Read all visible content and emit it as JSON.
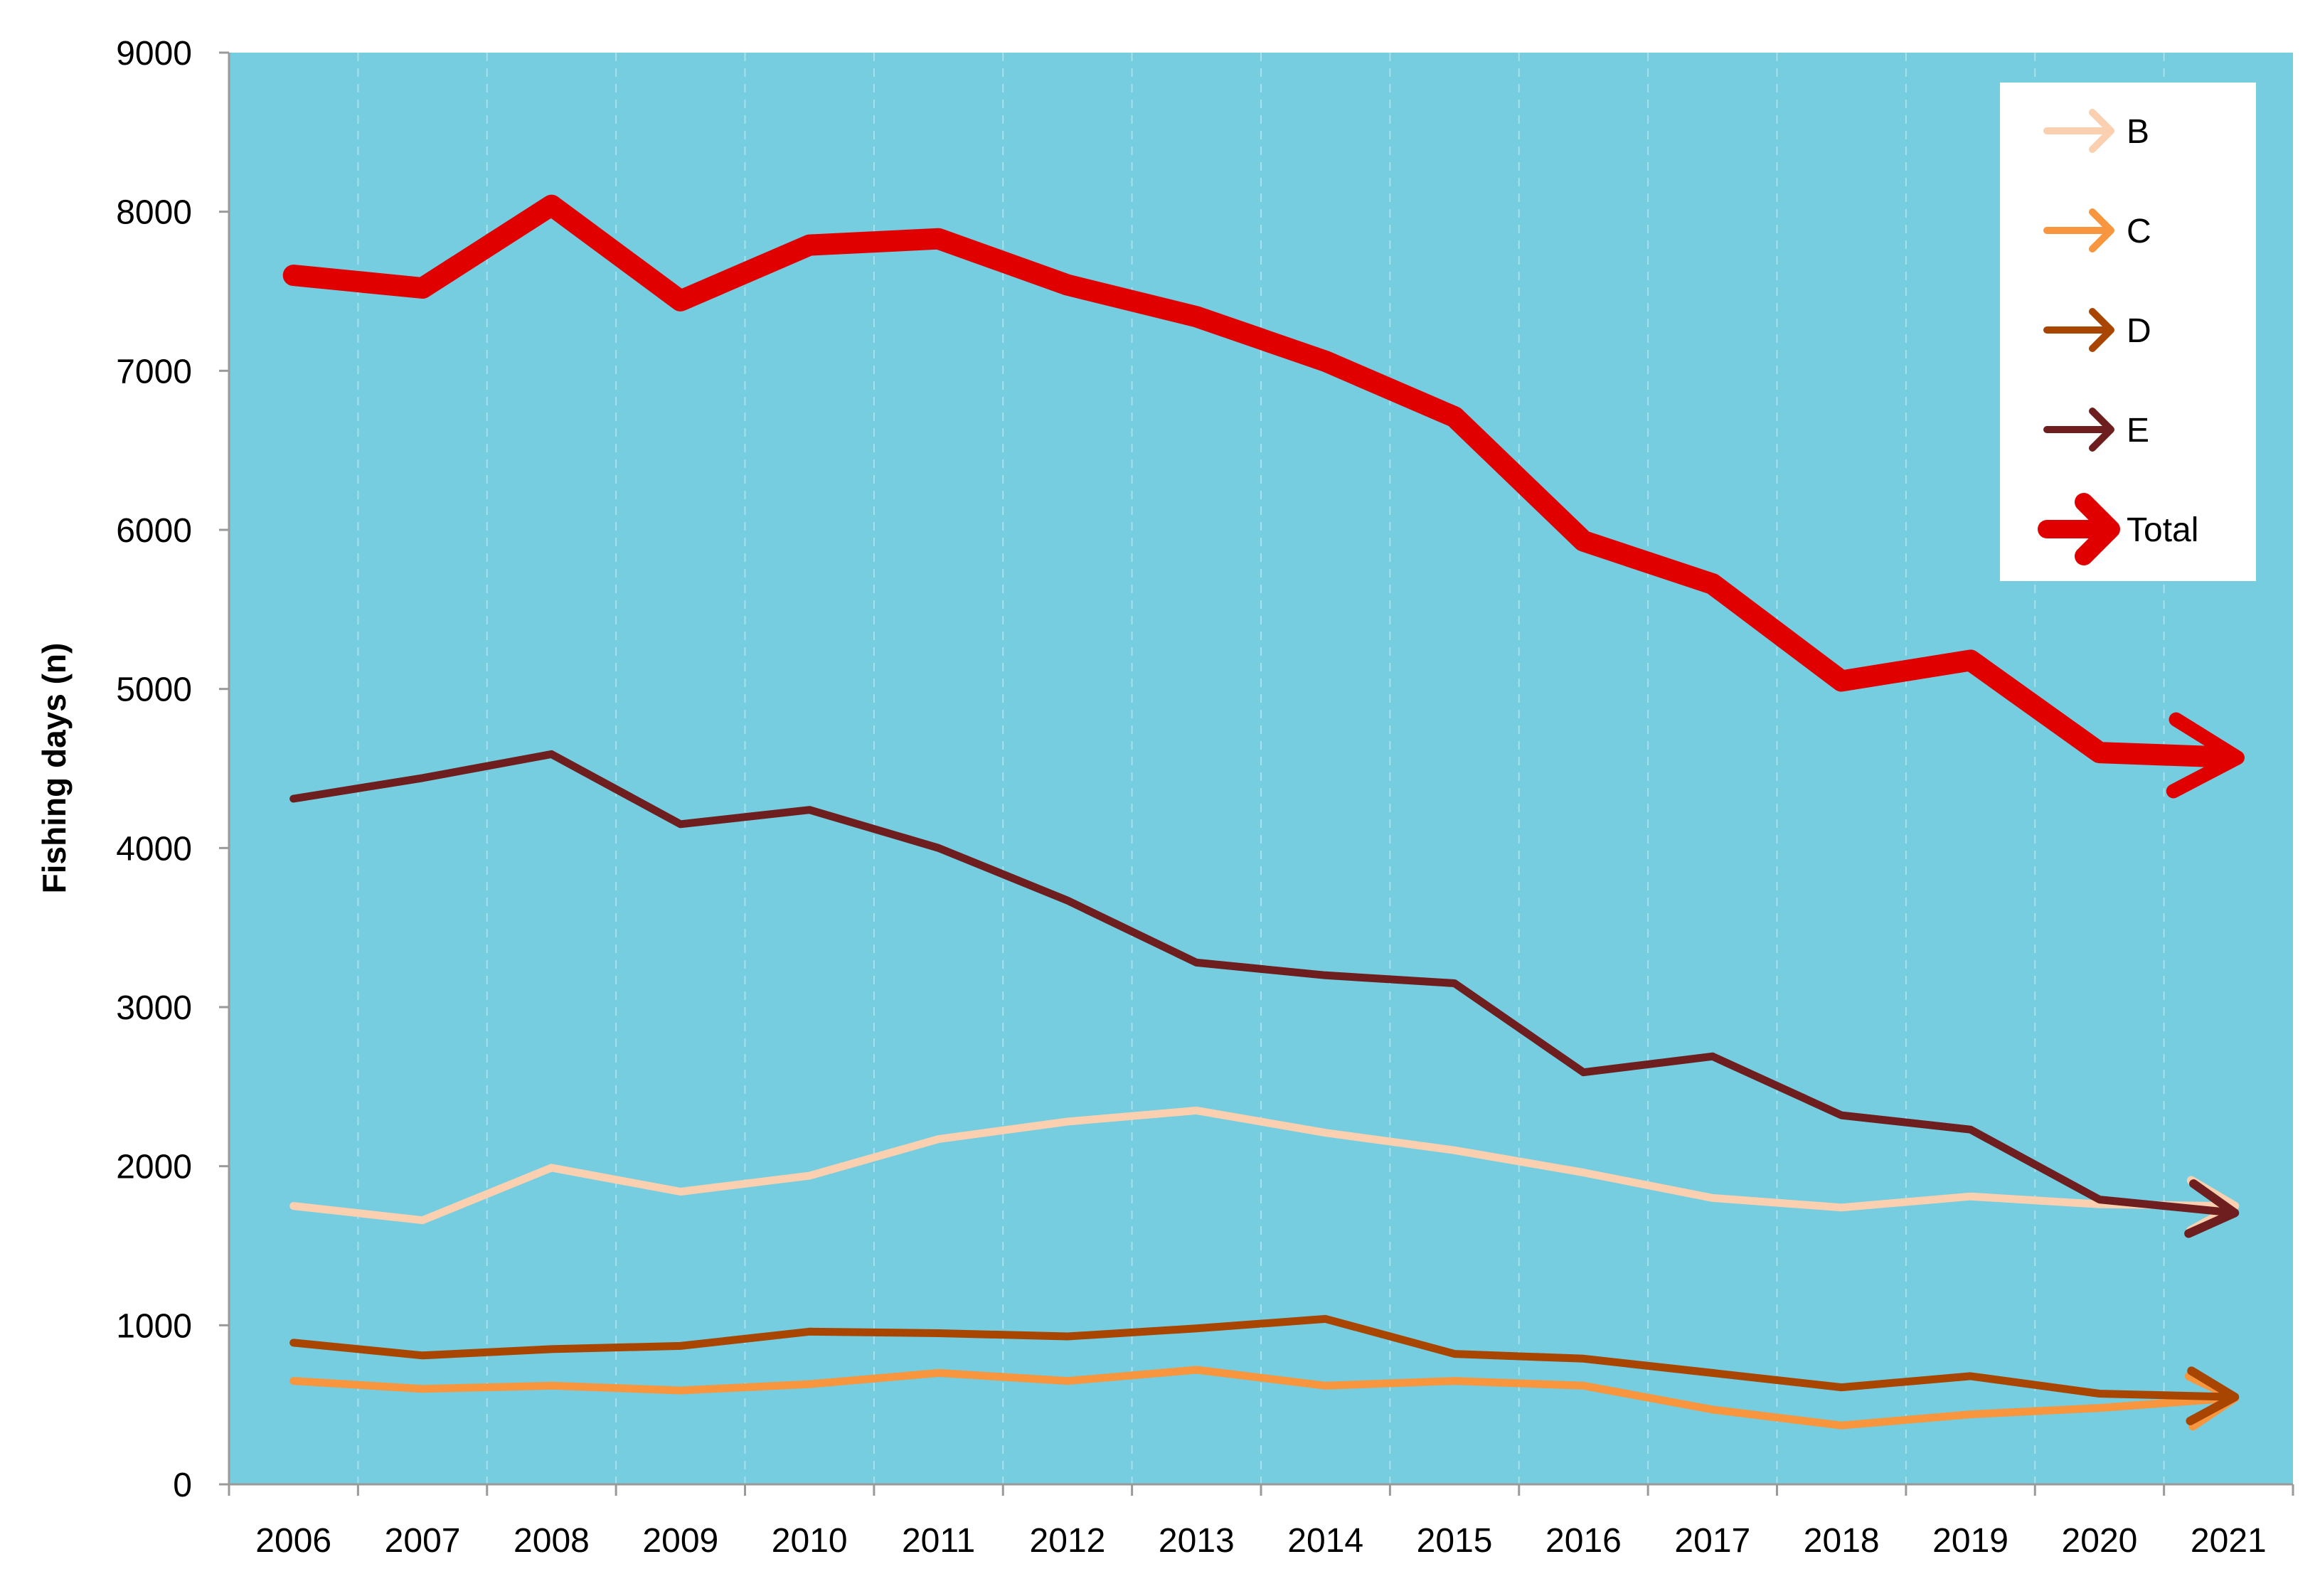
{
  "chart_data": {
    "type": "line",
    "title": "",
    "xlabel": "",
    "ylabel": "Fishing days (n)",
    "ylim": [
      0,
      9000
    ],
    "yticks": [
      0,
      1000,
      2000,
      3000,
      4000,
      5000,
      6000,
      7000,
      8000,
      9000
    ],
    "categories": [
      "2006",
      "2007",
      "2008",
      "2009",
      "2010",
      "2011",
      "2012",
      "2013",
      "2014",
      "2015",
      "2016",
      "2017",
      "2018",
      "2019",
      "2020",
      "2021"
    ],
    "grid": "vertical dashed",
    "legend_position": "top-right",
    "colors": {
      "plot_background": "#75cddf",
      "gridline": "#a8e0ec",
      "axis": "#9a9a9a"
    },
    "series": [
      {
        "name": "B",
        "color": "#fbd0b0",
        "weight": "normal",
        "values": [
          1750,
          1660,
          1990,
          1840,
          1940,
          2170,
          2280,
          2350,
          2210,
          2100,
          1960,
          1800,
          1740,
          1810,
          1760,
          1750
        ]
      },
      {
        "name": "C",
        "color": "#f7963e",
        "weight": "normal",
        "values": [
          650,
          600,
          620,
          590,
          630,
          700,
          650,
          720,
          620,
          650,
          620,
          470,
          370,
          440,
          480,
          540
        ]
      },
      {
        "name": "D",
        "color": "#a84500",
        "weight": "normal",
        "values": [
          890,
          810,
          850,
          870,
          960,
          950,
          930,
          980,
          1040,
          820,
          790,
          700,
          610,
          680,
          570,
          550
        ]
      },
      {
        "name": "E",
        "color": "#6e1e1e",
        "weight": "normal",
        "values": [
          4310,
          4440,
          4590,
          4150,
          4240,
          4000,
          3670,
          3280,
          3200,
          3150,
          2590,
          2690,
          2320,
          2230,
          1790,
          1710
        ]
      },
      {
        "name": "Total",
        "color": "#e00000",
        "weight": "bold",
        "values": [
          7600,
          7520,
          8040,
          7440,
          7790,
          7830,
          7540,
          7340,
          7060,
          6710,
          5930,
          5660,
          5050,
          5180,
          4600,
          4570
        ]
      }
    ]
  }
}
